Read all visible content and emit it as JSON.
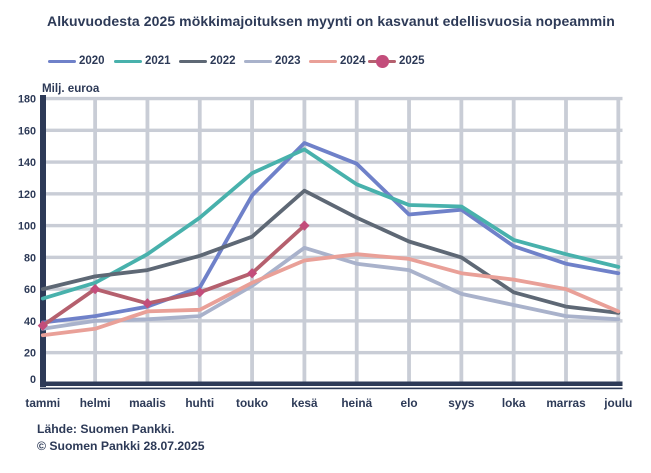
{
  "title": "Alkuvuodesta 2025 mökkimajoituksen myynti on kasvanut edellisvuosia nopeammin",
  "y_axis": {
    "title": "Milj. euroa",
    "ticks": [
      180,
      160,
      140,
      120,
      100,
      80,
      60,
      40,
      20,
      0
    ]
  },
  "x_axis": {
    "months": [
      "tammi",
      "helmi",
      "maalis",
      "huhti",
      "touko",
      "kesä",
      "heinä",
      "elo",
      "syys",
      "loka",
      "marras",
      "joulu"
    ]
  },
  "footer": {
    "source": "Lähde: Suomen Pankki.",
    "copyright": "© Suomen Pankki 28.07.2025"
  },
  "colors": {
    "text": "#2d3a57",
    "axis": "#2d3a57",
    "grid": "#c9cdd6",
    "background": "#ffffff"
  },
  "chart_data": {
    "type": "line",
    "title": "Alkuvuodesta 2025 mökkimajoituksen myynti on kasvanut edellisvuosia nopeammin",
    "categories": [
      "tammi",
      "helmi",
      "maalis",
      "huhti",
      "touko",
      "kesä",
      "heinä",
      "elo",
      "syys",
      "loka",
      "marras",
      "joulu"
    ],
    "xlabel": "",
    "ylabel": "Milj. euroa",
    "ylim": [
      0,
      180
    ],
    "grid": true,
    "legend_position": "top",
    "series": [
      {
        "name": "2020",
        "color": "#6f81c9",
        "marker": "none",
        "values": [
          39,
          43,
          49,
          61,
          119,
          152,
          139,
          107,
          110,
          87,
          76,
          70
        ]
      },
      {
        "name": "2021",
        "color": "#48b1ac",
        "marker": "none",
        "values": [
          54,
          64,
          82,
          105,
          133,
          148,
          126,
          113,
          112,
          91,
          82,
          74
        ]
      },
      {
        "name": "2022",
        "color": "#5e6875",
        "marker": "none",
        "values": [
          60,
          68,
          72,
          81,
          93,
          122,
          105,
          90,
          80,
          58,
          49,
          45
        ]
      },
      {
        "name": "2023",
        "color": "#a9b2cb",
        "marker": "none",
        "values": [
          35,
          40,
          41,
          43,
          62,
          86,
          76,
          72,
          57,
          50,
          43,
          41
        ]
      },
      {
        "name": "2024",
        "color": "#e9a098",
        "marker": "none",
        "values": [
          31,
          35,
          46,
          47,
          64,
          78,
          82,
          79,
          70,
          66,
          60,
          46
        ]
      },
      {
        "name": "2025",
        "color": "#b5606e",
        "marker": "diamond",
        "marker_color": "#c34d7b",
        "values": [
          37,
          60,
          51,
          58,
          70,
          100
        ]
      }
    ]
  }
}
